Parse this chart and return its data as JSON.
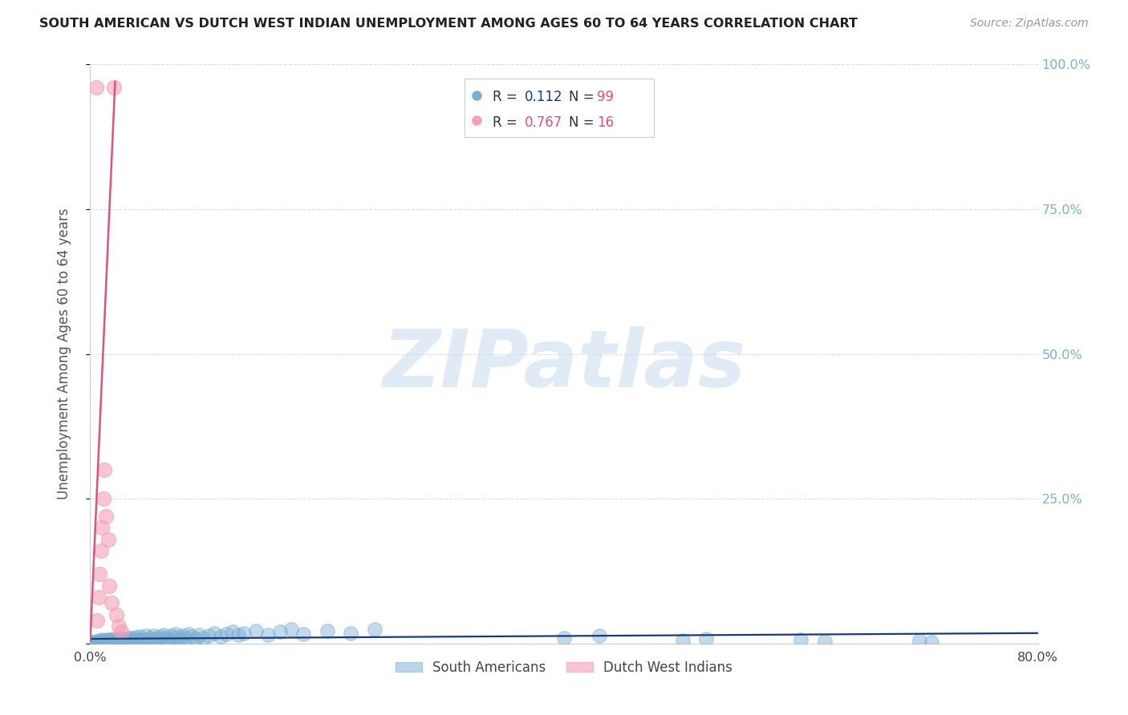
{
  "title": "SOUTH AMERICAN VS DUTCH WEST INDIAN UNEMPLOYMENT AMONG AGES 60 TO 64 YEARS CORRELATION CHART",
  "source": "Source: ZipAtlas.com",
  "ylabel": "Unemployment Among Ages 60 to 64 years",
  "xlim": [
    0.0,
    0.8
  ],
  "ylim": [
    0.0,
    1.0
  ],
  "watermark": "ZIPatlas",
  "blue_scatter_color": "#7BAFD4",
  "pink_scatter_color": "#F4A0B5",
  "blue_line_color": "#1A3A7A",
  "pink_line_color": "#E05080",
  "right_tick_color": "#7BAFD4",
  "grid_color": "#DDDDDD",
  "background_color": "#FFFFFF",
  "R_blue": 0.112,
  "N_blue": 99,
  "R_pink": 0.767,
  "N_pink": 16,
  "legend_label_blue": "South Americans",
  "legend_label_pink": "Dutch West Indians",
  "title_color": "#222222",
  "sa_x": [
    0.001,
    0.002,
    0.003,
    0.003,
    0.004,
    0.005,
    0.005,
    0.006,
    0.006,
    0.007,
    0.007,
    0.008,
    0.008,
    0.009,
    0.009,
    0.01,
    0.01,
    0.011,
    0.011,
    0.012,
    0.012,
    0.013,
    0.013,
    0.014,
    0.014,
    0.015,
    0.015,
    0.016,
    0.017,
    0.018,
    0.019,
    0.02,
    0.021,
    0.022,
    0.023,
    0.024,
    0.025,
    0.026,
    0.027,
    0.028,
    0.03,
    0.031,
    0.032,
    0.033,
    0.035,
    0.036,
    0.038,
    0.04,
    0.041,
    0.042,
    0.044,
    0.045,
    0.047,
    0.048,
    0.05,
    0.052,
    0.054,
    0.055,
    0.057,
    0.059,
    0.06,
    0.062,
    0.064,
    0.066,
    0.068,
    0.07,
    0.072,
    0.074,
    0.076,
    0.078,
    0.08,
    0.083,
    0.086,
    0.089,
    0.092,
    0.095,
    0.1,
    0.105,
    0.11,
    0.115,
    0.12,
    0.125,
    0.13,
    0.14,
    0.15,
    0.16,
    0.17,
    0.18,
    0.2,
    0.22,
    0.24,
    0.4,
    0.43,
    0.5,
    0.52,
    0.6,
    0.62,
    0.7,
    0.71
  ],
  "sa_y": [
    0.002,
    0.001,
    0.003,
    0.0,
    0.002,
    0.004,
    0.001,
    0.003,
    0.0,
    0.002,
    0.001,
    0.003,
    0.005,
    0.002,
    0.001,
    0.003,
    0.006,
    0.002,
    0.004,
    0.001,
    0.003,
    0.005,
    0.002,
    0.007,
    0.003,
    0.004,
    0.001,
    0.006,
    0.003,
    0.002,
    0.008,
    0.005,
    0.003,
    0.007,
    0.004,
    0.002,
    0.009,
    0.005,
    0.003,
    0.007,
    0.008,
    0.004,
    0.01,
    0.006,
    0.009,
    0.005,
    0.011,
    0.007,
    0.004,
    0.012,
    0.008,
    0.005,
    0.013,
    0.007,
    0.009,
    0.006,
    0.014,
    0.01,
    0.007,
    0.012,
    0.008,
    0.015,
    0.01,
    0.006,
    0.013,
    0.009,
    0.016,
    0.011,
    0.008,
    0.014,
    0.01,
    0.017,
    0.012,
    0.008,
    0.015,
    0.01,
    0.013,
    0.018,
    0.012,
    0.016,
    0.02,
    0.015,
    0.018,
    0.022,
    0.015,
    0.02,
    0.025,
    0.017,
    0.022,
    0.018,
    0.025,
    0.01,
    0.013,
    0.005,
    0.008,
    0.006,
    0.004,
    0.005,
    0.003
  ],
  "dwi_x": [
    0.005,
    0.006,
    0.007,
    0.008,
    0.009,
    0.01,
    0.011,
    0.012,
    0.013,
    0.015,
    0.016,
    0.018,
    0.02,
    0.022,
    0.024,
    0.026
  ],
  "dwi_y": [
    0.96,
    0.04,
    0.08,
    0.12,
    0.16,
    0.2,
    0.25,
    0.3,
    0.22,
    0.18,
    0.1,
    0.07,
    0.96,
    0.05,
    0.03,
    0.02
  ],
  "blue_trend_x": [
    0.0,
    0.8
  ],
  "blue_trend_y": [
    0.008,
    0.018
  ],
  "pink_trend_x": [
    0.0,
    0.021
  ],
  "pink_trend_y": [
    0.005,
    0.97
  ]
}
